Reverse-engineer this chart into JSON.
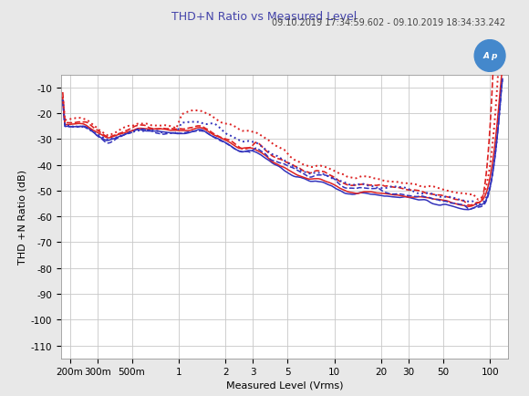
{
  "title": "THD+N Ratio vs Measured Level",
  "subtitle": "09.10.2019 17:34:59.602 - 09.10.2019 18:34:33.242",
  "xlabel": "Measured Level (Vrms)",
  "ylabel": "THD +N Ratio (dB)",
  "xlim": [
    0.175,
    130
  ],
  "ylim": [
    -115,
    -5
  ],
  "yticks": [
    -10,
    -20,
    -30,
    -40,
    -50,
    -60,
    -70,
    -80,
    -90,
    -100,
    -110
  ],
  "xtick_labels": [
    "200m",
    "300m",
    "500m",
    "1",
    "2",
    "3",
    "5",
    "10",
    "20",
    "30",
    "50",
    "100"
  ],
  "xtick_values": [
    0.2,
    0.3,
    0.5,
    1.0,
    2.0,
    3.0,
    5.0,
    10.0,
    20.0,
    30.0,
    50.0,
    100.0
  ],
  "color_blue": "#3333bb",
  "color_red": "#dd2222",
  "bg_color": "#e8e8e8",
  "plot_bg": "#ffffff",
  "grid_color": "#c8c8c8",
  "title_color": "#4444aa",
  "title_fontsize": 9,
  "subtitle_fontsize": 7,
  "axis_label_fontsize": 8,
  "tick_fontsize": 7.5,
  "lw": 1.1
}
